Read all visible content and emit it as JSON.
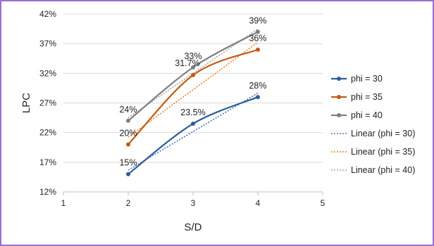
{
  "chart_data": {
    "type": "line",
    "xlabel": "S/D",
    "ylabel": "LPC",
    "xlim": [
      1,
      5
    ],
    "ylim": [
      12,
      42
    ],
    "x_ticks": [
      1,
      2,
      3,
      4,
      5
    ],
    "y_ticks": [
      12,
      17,
      22,
      27,
      32,
      37,
      42
    ],
    "y_tick_suffix": "%",
    "grid": "horizontal",
    "legend_position": "right",
    "series": [
      {
        "name": "phi = 30",
        "color": "#2e5d96",
        "x": [
          2,
          3,
          4
        ],
        "y": [
          15,
          23.5,
          28
        ],
        "labels": [
          "15%",
          "23.5%",
          "28%"
        ]
      },
      {
        "name": "phi = 35",
        "color": "#c55a11",
        "x": [
          2,
          3,
          4
        ],
        "y": [
          20,
          31.7,
          36
        ],
        "labels": [
          "20%",
          "31.7%",
          "36%"
        ]
      },
      {
        "name": "phi = 40",
        "color": "#7f7f7f",
        "x": [
          2,
          3,
          4
        ],
        "y": [
          24,
          33,
          39
        ],
        "labels": [
          "24%",
          "33%",
          "39%"
        ]
      }
    ],
    "trendlines": [
      {
        "name": "Linear (phi = 30)",
        "type": "linear",
        "of_series": 0,
        "color": "#4472c4"
      },
      {
        "name": "Linear (phi = 35)",
        "type": "linear",
        "of_series": 1,
        "color": "#ed7d31"
      },
      {
        "name": "Linear (phi = 40)",
        "type": "linear",
        "of_series": 2,
        "color": "#a5a5a5"
      }
    ]
  }
}
